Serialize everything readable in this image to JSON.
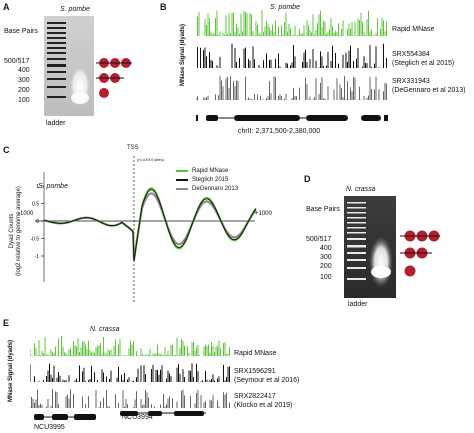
{
  "panel_a": {
    "letter": "A",
    "organism": "S. pombe",
    "axis_title": "Base Pairs",
    "size_labels": [
      "500/517",
      "400",
      "300",
      "200",
      "100"
    ],
    "lane_label": "ladder"
  },
  "panel_b": {
    "letter": "B",
    "organism": "S. pombe",
    "y_axis_title": "MNase Signal (dyads)",
    "tracks": [
      {
        "line1": "Rapid MNase",
        "line2": "",
        "color": "#5cc53b"
      },
      {
        "line1": "SRX554384",
        "line2": "(Steglich et al 2015)",
        "color": "#111111"
      },
      {
        "line1": "SRX331943",
        "line2": "(DeGennaro et al 2013)",
        "color": "#666666"
      }
    ],
    "coordinate": "chrII: 2,371,500-2,380,000"
  },
  "panel_c": {
    "letter": "C",
    "organism": "S. pombe",
    "tss_label": "TSS",
    "n_sites": "(n=1XXX sites)",
    "y_axis_line1": "Dyad Counts",
    "y_axis_line2": "(log2 relative to genome average)",
    "x_left": "-1000",
    "x_right": "+1000",
    "y_ticks": [
      "1",
      "0.5",
      "0",
      "-0.5",
      "-1"
    ],
    "legend": [
      {
        "name": "Rapid MNase",
        "color": "#5cc53b"
      },
      {
        "name": "Steglich 2015",
        "color": "#111111"
      },
      {
        "name": "DeGennaro 2013",
        "color": "#8a8a8a"
      }
    ]
  },
  "panel_d": {
    "letter": "D",
    "organism": "N. crassa",
    "axis_title": "Base Pairs",
    "size_labels": [
      "500/517",
      "400",
      "300",
      "200",
      "100"
    ],
    "lane_label": "ladder"
  },
  "panel_e": {
    "letter": "E",
    "organism": "N. crassa",
    "y_axis_title": "MNase Signal (dyads)",
    "tracks": [
      {
        "line1": "Rapid MNase",
        "line2": "",
        "color": "#5cc53b"
      },
      {
        "line1": "SRX1596291",
        "line2": "(Seymour et al 2016)",
        "color": "#111111"
      },
      {
        "line1": "SRX2822417",
        "line2": "(Klocko et al 2019)",
        "color": "#666666"
      }
    ],
    "genes": [
      "NCU3995",
      "NCU3994"
    ]
  }
}
